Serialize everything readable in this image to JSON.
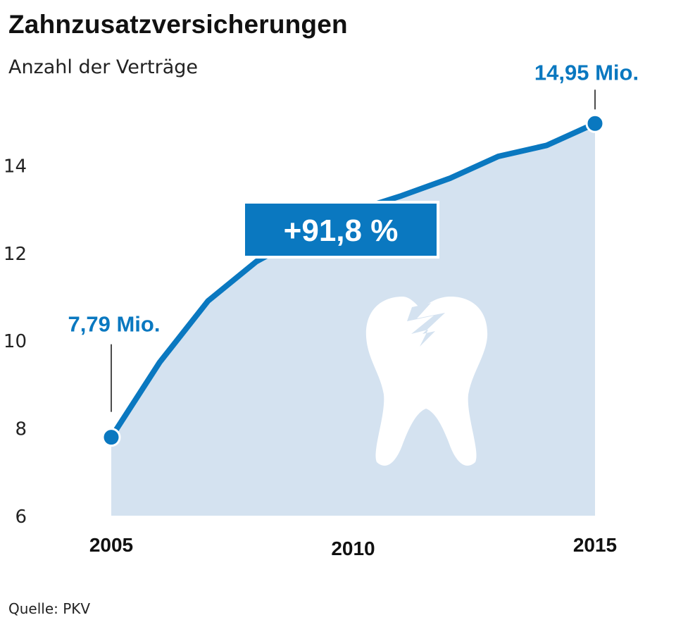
{
  "title": "Zahnzusatzversicherungen",
  "subtitle": "Anzahl der Verträge",
  "source": "Quelle: PKV",
  "colors": {
    "line": "#0a78c0",
    "area": "#d4e2f0",
    "badge": "#0a78c0",
    "text": "#111111",
    "icon": "#ffffff"
  },
  "icon": "broken-tooth-icon",
  "chart_data": {
    "type": "area",
    "title": "Zahnzusatzversicherungen",
    "ylabel": "Anzahl der Verträge",
    "x": [
      2005,
      2006,
      2007,
      2008,
      2009,
      2010,
      2011,
      2012,
      2013,
      2014,
      2015
    ],
    "values": [
      7.79,
      9.5,
      10.9,
      11.8,
      12.4,
      12.95,
      13.3,
      13.7,
      14.2,
      14.45,
      14.95
    ],
    "x_ticks": [
      "2005",
      "2010",
      "2015"
    ],
    "y_ticks": [
      "6",
      "8",
      "10",
      "12",
      "14"
    ],
    "ylim": [
      6,
      16
    ],
    "xlim": [
      2005,
      2015
    ],
    "grid": false,
    "legend": "none",
    "annotations": {
      "start_label": "7,79 Mio.",
      "end_label": "14,95 Mio.",
      "change_label": "+91,8 %"
    }
  }
}
